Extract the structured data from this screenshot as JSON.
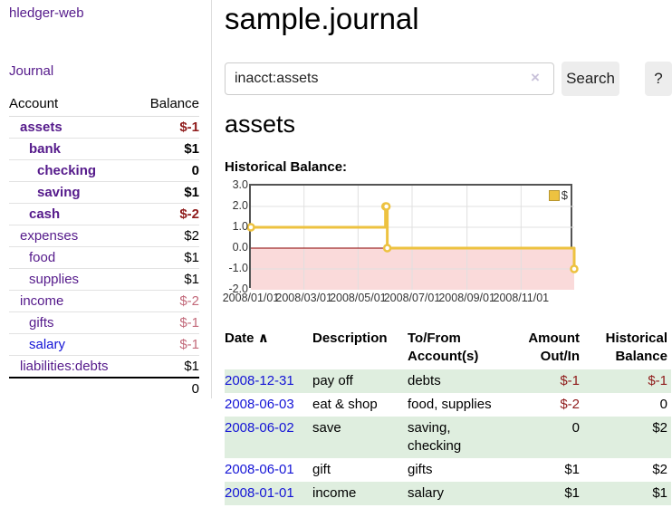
{
  "app": {
    "brand": "hledger-web",
    "nav_journal": "Journal"
  },
  "sidebar": {
    "header": {
      "account": "Account",
      "balance": "Balance"
    },
    "accounts": [
      {
        "name": "assets",
        "balance": "$-1"
      },
      {
        "name": "bank",
        "balance": "$1"
      },
      {
        "name": "checking",
        "balance": "0"
      },
      {
        "name": "saving",
        "balance": "$1"
      },
      {
        "name": "cash",
        "balance": "$-2"
      },
      {
        "name": "expenses",
        "balance": "$2"
      },
      {
        "name": "food",
        "balance": "$1"
      },
      {
        "name": "supplies",
        "balance": "$1"
      },
      {
        "name": "income",
        "balance": "$-2"
      },
      {
        "name": "gifts",
        "balance": "$-1"
      },
      {
        "name": "salary",
        "balance": "$-1"
      },
      {
        "name": "liabilities:debts",
        "balance": "$1"
      }
    ],
    "total": "0"
  },
  "header": {
    "title": "sample.journal"
  },
  "search": {
    "value": "inacct:assets",
    "clear_icon": "×",
    "button_label": "Search",
    "help_label": "?"
  },
  "account_page": {
    "heading": "assets",
    "chart_title": "Historical Balance:"
  },
  "chart_data": {
    "type": "line",
    "step": true,
    "title": "Historical Balance:",
    "legend": [
      {
        "label": "$",
        "color": "#edc240"
      }
    ],
    "x_domain_days": 365,
    "ylim": [
      -2,
      3
    ],
    "series": [
      {
        "name": "$",
        "points": [
          {
            "date": "2008/01/01",
            "day": 0,
            "value": 1.0
          },
          {
            "date": "2008/06/01",
            "day": 152,
            "value": 2.0
          },
          {
            "date": "2008/06/02",
            "day": 153,
            "value": 2.0
          },
          {
            "date": "2008/06/03",
            "day": 154,
            "value": 0.0
          },
          {
            "date": "2008/12/31",
            "day": 365,
            "value": -1.0
          }
        ]
      }
    ],
    "x_ticks": [
      {
        "label": "2008/01/01",
        "day": 0
      },
      {
        "label": "2008/03/01",
        "day": 60
      },
      {
        "label": "2008/05/01",
        "day": 121
      },
      {
        "label": "2008/07/01",
        "day": 182
      },
      {
        "label": "2008/09/01",
        "day": 244
      },
      {
        "label": "2008/11/01",
        "day": 305
      }
    ],
    "y_ticks": [
      {
        "label": "3.0",
        "value": 3
      },
      {
        "label": "2.0",
        "value": 2
      },
      {
        "label": "1.0",
        "value": 1
      },
      {
        "label": "0.0",
        "value": 0
      },
      {
        "label": "-1.0",
        "value": -1
      },
      {
        "label": "-2.0",
        "value": -2
      }
    ],
    "colors": {
      "line": "#edc240",
      "marker_fill": "#ffffff",
      "negative_region": "#fadada",
      "zero_line": "#8b0000",
      "grid": "#e0e0e0",
      "border": "#545454"
    }
  },
  "register": {
    "columns": [
      "Date",
      "Description",
      "To/From Account(s)",
      "Amount Out/In",
      "Historical Balance"
    ],
    "sort_icon": "∧",
    "rows": [
      {
        "date": "2008-12-31",
        "description": "pay off",
        "accounts": "debts",
        "amount": "$-1",
        "balance": "$-1"
      },
      {
        "date": "2008-06-03",
        "description": "eat & shop",
        "accounts": "food, supplies",
        "amount": "$-2",
        "balance": "0"
      },
      {
        "date": "2008-06-02",
        "description": "save",
        "accounts": "saving, checking",
        "amount": "0",
        "balance": "$2"
      },
      {
        "date": "2008-06-01",
        "description": "gift",
        "accounts": "gifts",
        "amount": "$1",
        "balance": "$2"
      },
      {
        "date": "2008-01-01",
        "description": "income",
        "accounts": "salary",
        "amount": "$1",
        "balance": "$1"
      }
    ]
  }
}
